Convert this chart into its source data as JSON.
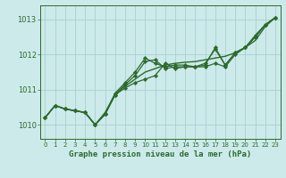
{
  "title": "Graphe pression niveau de la mer (hPa)",
  "bg_color": "#cceaea",
  "grid_color": "#aacfcf",
  "line_color": "#2d6a2d",
  "marker_color": "#2d6a2d",
  "xlim": [
    -0.5,
    23.5
  ],
  "ylim": [
    1009.6,
    1013.4
  ],
  "yticks": [
    1010,
    1011,
    1012,
    1013
  ],
  "xticks": [
    0,
    1,
    2,
    3,
    4,
    5,
    6,
    7,
    8,
    9,
    10,
    11,
    12,
    13,
    14,
    15,
    16,
    17,
    18,
    19,
    20,
    21,
    22,
    23
  ],
  "series": [
    {
      "y": [
        1010.2,
        1010.55,
        1010.45,
        1010.4,
        1010.35,
        1010.0,
        1010.3,
        1010.85,
        1011.05,
        1011.2,
        1011.3,
        1011.4,
        1011.75,
        1011.6,
        1011.65,
        1011.65,
        1011.65,
        1011.75,
        1011.65,
        1012.0,
        1012.2,
        1012.5,
        1012.85,
        1013.05
      ],
      "marker": "D",
      "markersize": 2.2,
      "linewidth": 0.9
    },
    {
      "y": [
        1010.2,
        1010.55,
        1010.45,
        1010.4,
        1010.35,
        1010.0,
        1010.3,
        1010.85,
        1011.15,
        1011.4,
        1011.8,
        1011.85,
        1011.6,
        1011.65,
        1011.65,
        1011.65,
        1011.7,
        1012.2,
        1011.7,
        1012.05,
        1012.2,
        1012.5,
        1012.85,
        1013.05
      ],
      "marker": "D",
      "markersize": 2.2,
      "linewidth": 0.9
    },
    {
      "y": [
        1010.2,
        1010.55,
        1010.45,
        1010.4,
        1010.35,
        1010.0,
        1010.3,
        1010.9,
        1011.2,
        1011.5,
        1011.9,
        1011.75,
        1011.65,
        1011.7,
        1011.7,
        1011.65,
        1011.75,
        1012.15,
        1011.7,
        1012.05,
        1012.2,
        1012.55,
        1012.85,
        1013.05
      ],
      "marker": "D",
      "markersize": 2.2,
      "linewidth": 0.9
    },
    {
      "y": [
        1010.2,
        1010.55,
        1010.45,
        1010.4,
        1010.35,
        1010.0,
        1010.35,
        1010.88,
        1011.1,
        1011.3,
        1011.5,
        1011.6,
        1011.7,
        1011.75,
        1011.78,
        1011.8,
        1011.85,
        1011.9,
        1011.95,
        1012.05,
        1012.2,
        1012.4,
        1012.8,
        1013.05
      ],
      "marker": null,
      "markersize": 0,
      "linewidth": 1.0
    }
  ]
}
